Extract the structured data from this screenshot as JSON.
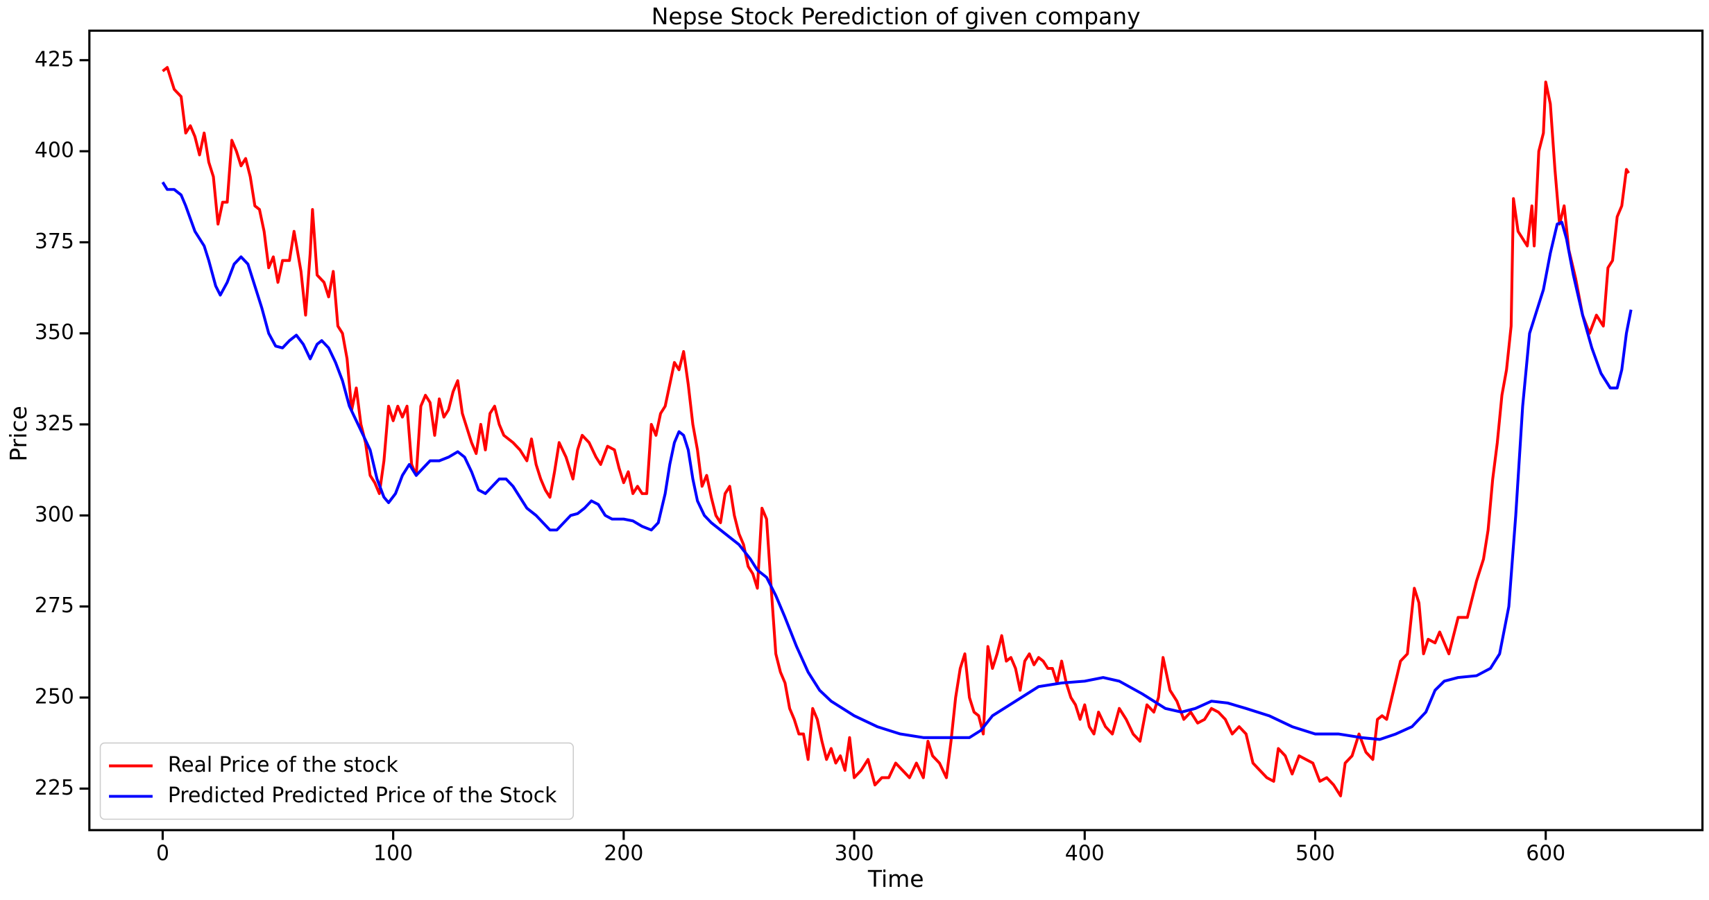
{
  "chart_data": {
    "type": "line",
    "title": "Nepse Stock Perediction of given company",
    "x_label": "Time",
    "y_label": "Price",
    "xlim": [
      -31.8,
      668
    ],
    "ylim": [
      213.6,
      433.1
    ],
    "xticks": [
      0,
      100,
      200,
      300,
      400,
      500,
      600
    ],
    "yticks": [
      225,
      250,
      275,
      300,
      325,
      350,
      375,
      400,
      425
    ],
    "legend": "lower left",
    "series": [
      {
        "name": "Real Price of the stock",
        "color": "#ff0000",
        "x": [
          0,
          2,
          5,
          8,
          10,
          12,
          14,
          16,
          18,
          20,
          22,
          24,
          26,
          28,
          30,
          32,
          34,
          36,
          38,
          40,
          42,
          44,
          46,
          48,
          50,
          52,
          55,
          57,
          60,
          62,
          64,
          65,
          67,
          70,
          72,
          74,
          76,
          78,
          80,
          82,
          84,
          86,
          88,
          90,
          92,
          94,
          96,
          98,
          100,
          102,
          104,
          106,
          108,
          110,
          112,
          114,
          116,
          118,
          120,
          122,
          124,
          126,
          128,
          130,
          132,
          134,
          136,
          138,
          140,
          142,
          144,
          146,
          148,
          150,
          152,
          155,
          158,
          160,
          162,
          164,
          166,
          168,
          170,
          172,
          175,
          178,
          180,
          182,
          185,
          188,
          190,
          193,
          196,
          198,
          200,
          202,
          204,
          206,
          208,
          210,
          212,
          214,
          216,
          218,
          220,
          222,
          224,
          226,
          228,
          230,
          232,
          234,
          236,
          238,
          240,
          242,
          244,
          246,
          248,
          250,
          252,
          254,
          256,
          258,
          260,
          262,
          264,
          266,
          268,
          270,
          272,
          274,
          276,
          278,
          280,
          282,
          284,
          286,
          288,
          290,
          292,
          294,
          296,
          298,
          300,
          303,
          306,
          309,
          312,
          315,
          318,
          321,
          324,
          327,
          330,
          332,
          334,
          337,
          340,
          342,
          344,
          346,
          348,
          350,
          352,
          354,
          356,
          358,
          360,
          362,
          364,
          366,
          368,
          370,
          372,
          374,
          376,
          378,
          380,
          382,
          384,
          386,
          388,
          390,
          392,
          394,
          396,
          398,
          400,
          402,
          404,
          406,
          409,
          412,
          415,
          418,
          421,
          424,
          427,
          430,
          432,
          434,
          437,
          440,
          443,
          446,
          449,
          452,
          455,
          458,
          461,
          464,
          467,
          470,
          473,
          476,
          479,
          482,
          484,
          487,
          490,
          493,
          496,
          499,
          502,
          505,
          508,
          511,
          513,
          516,
          519,
          522,
          525,
          527,
          529,
          531,
          534,
          537,
          540,
          543,
          545,
          547,
          549,
          552,
          554,
          558,
          562,
          566,
          570,
          573,
          575,
          577,
          579,
          581,
          583,
          585,
          586,
          588,
          590,
          592,
          594,
          595,
          597,
          599,
          600,
          602,
          604,
          606,
          608,
          610,
          613,
          616,
          619,
          622,
          625,
          627,
          629,
          631,
          633,
          635,
          636
        ],
        "values": [
          422,
          423,
          417,
          415,
          405,
          407,
          404,
          399,
          405,
          397,
          393,
          380,
          386,
          386,
          403,
          400,
          396,
          398,
          393,
          385,
          384,
          378,
          368,
          371,
          364,
          370,
          370,
          378,
          367,
          355,
          372,
          384,
          366,
          364,
          360,
          367,
          352,
          350,
          343,
          329,
          335,
          325,
          320,
          311,
          309,
          306,
          315,
          330,
          326,
          330,
          327,
          330,
          314,
          311,
          330,
          333,
          331,
          322,
          332,
          327,
          329,
          334,
          337,
          328,
          324,
          320,
          317,
          325,
          318,
          328,
          330,
          325,
          322,
          321,
          320,
          318,
          315,
          321,
          314,
          310,
          307,
          305,
          312,
          320,
          316,
          310,
          318,
          322,
          320,
          316,
          314,
          319,
          318,
          313,
          309,
          312,
          306,
          308,
          306,
          306,
          325,
          322,
          328,
          330,
          336,
          342,
          340,
          345,
          336,
          325,
          318,
          308,
          311,
          305,
          300,
          298,
          306,
          308,
          300,
          295,
          292,
          286,
          284,
          280,
          302,
          299,
          280,
          262,
          257,
          254,
          247,
          244,
          240,
          240,
          233,
          247,
          244,
          238,
          233,
          236,
          232,
          234,
          230,
          239,
          228,
          230,
          233,
          226,
          228,
          228,
          232,
          230,
          228,
          232,
          228,
          238,
          234,
          232,
          228,
          238,
          250,
          258,
          262,
          250,
          246,
          245,
          240,
          264,
          258,
          262,
          267,
          260,
          261,
          258,
          252,
          260,
          262,
          259,
          261,
          260,
          258,
          258,
          254,
          260,
          254,
          250,
          248,
          244,
          248,
          242,
          240,
          246,
          242,
          240,
          247,
          244,
          240,
          238,
          248,
          246,
          250,
          261,
          252,
          249,
          244,
          246,
          243,
          244,
          247,
          246,
          244,
          240,
          242,
          240,
          232,
          230,
          228,
          227,
          236,
          234,
          229,
          234,
          233,
          232,
          227,
          228,
          226,
          223,
          232,
          234,
          240,
          235,
          233,
          244,
          245,
          244,
          252,
          260,
          262,
          280,
          276,
          262,
          266,
          265,
          268,
          262,
          272,
          272,
          282,
          288,
          296,
          310,
          320,
          333,
          340,
          352,
          387,
          378,
          376,
          374,
          385,
          374,
          400,
          405,
          419,
          413,
          395,
          380,
          385,
          373,
          365,
          355,
          350,
          355,
          352,
          368,
          370,
          382,
          385,
          395,
          394
        ]
      },
      {
        "name": "Predicted Predicted Price of the Stock",
        "color": "#0000ff",
        "x": [
          0,
          2,
          5,
          8,
          10,
          14,
          18,
          20,
          23,
          25,
          28,
          31,
          34,
          37,
          40,
          43,
          46,
          49,
          52,
          55,
          58,
          61,
          64,
          67,
          69,
          72,
          75,
          78,
          81,
          84,
          87,
          90,
          93,
          96,
          98,
          101,
          104,
          107,
          110,
          113,
          116,
          120,
          124,
          128,
          131,
          134,
          137,
          140,
          143,
          146,
          149,
          152,
          155,
          158,
          162,
          165,
          168,
          171,
          174,
          177,
          180,
          183,
          186,
          189,
          192,
          195,
          200,
          204,
          208,
          212,
          215,
          218,
          220,
          222,
          224,
          226,
          228,
          230,
          232,
          235,
          238,
          242,
          246,
          250,
          255,
          258,
          262,
          266,
          270,
          275,
          280,
          285,
          290,
          295,
          300,
          310,
          320,
          330,
          340,
          350,
          355,
          360,
          370,
          380,
          390,
          400,
          408,
          415,
          425,
          435,
          442,
          448,
          455,
          462,
          470,
          480,
          490,
          500,
          510,
          520,
          528,
          535,
          542,
          548,
          552,
          556,
          562,
          570,
          576,
          580,
          584,
          587,
          590,
          593,
          596,
          599,
          602,
          605,
          607,
          609,
          612,
          616,
          620,
          624,
          628,
          631,
          633,
          635,
          637
        ],
        "values": [
          391.5,
          389.5,
          389.5,
          388,
          385,
          378,
          374,
          370,
          363,
          360.5,
          364,
          369,
          371,
          369,
          363,
          357,
          350,
          346.5,
          346,
          348,
          349.5,
          347,
          343,
          347,
          348,
          346,
          342,
          337,
          330,
          326,
          322,
          318,
          310,
          305,
          303.5,
          306,
          311,
          314,
          311,
          313,
          315,
          315,
          316,
          317.5,
          316,
          312,
          307,
          306,
          308,
          310,
          310,
          308,
          305,
          302,
          300,
          298,
          296,
          296,
          298,
          300,
          300.5,
          302,
          304,
          303,
          300,
          299,
          299,
          298.5,
          297,
          296,
          298,
          306,
          314,
          320,
          323,
          322,
          318,
          310,
          304,
          300,
          298,
          296,
          294,
          292,
          288,
          285,
          283,
          278,
          272,
          264,
          257,
          252,
          249,
          247,
          245,
          242,
          240,
          239,
          239,
          239,
          241,
          245,
          249,
          253,
          254,
          254.5,
          255.5,
          254.5,
          251,
          247,
          246,
          247,
          249,
          248.5,
          247,
          245,
          242,
          240,
          240,
          239,
          238.5,
          240,
          242,
          246,
          252,
          254.5,
          255.5,
          256,
          258,
          262,
          275,
          300,
          330,
          350,
          356,
          362,
          372,
          380,
          380.5,
          376,
          366,
          355,
          346,
          339,
          335,
          335,
          340,
          350,
          356.5
        ]
      }
    ]
  }
}
